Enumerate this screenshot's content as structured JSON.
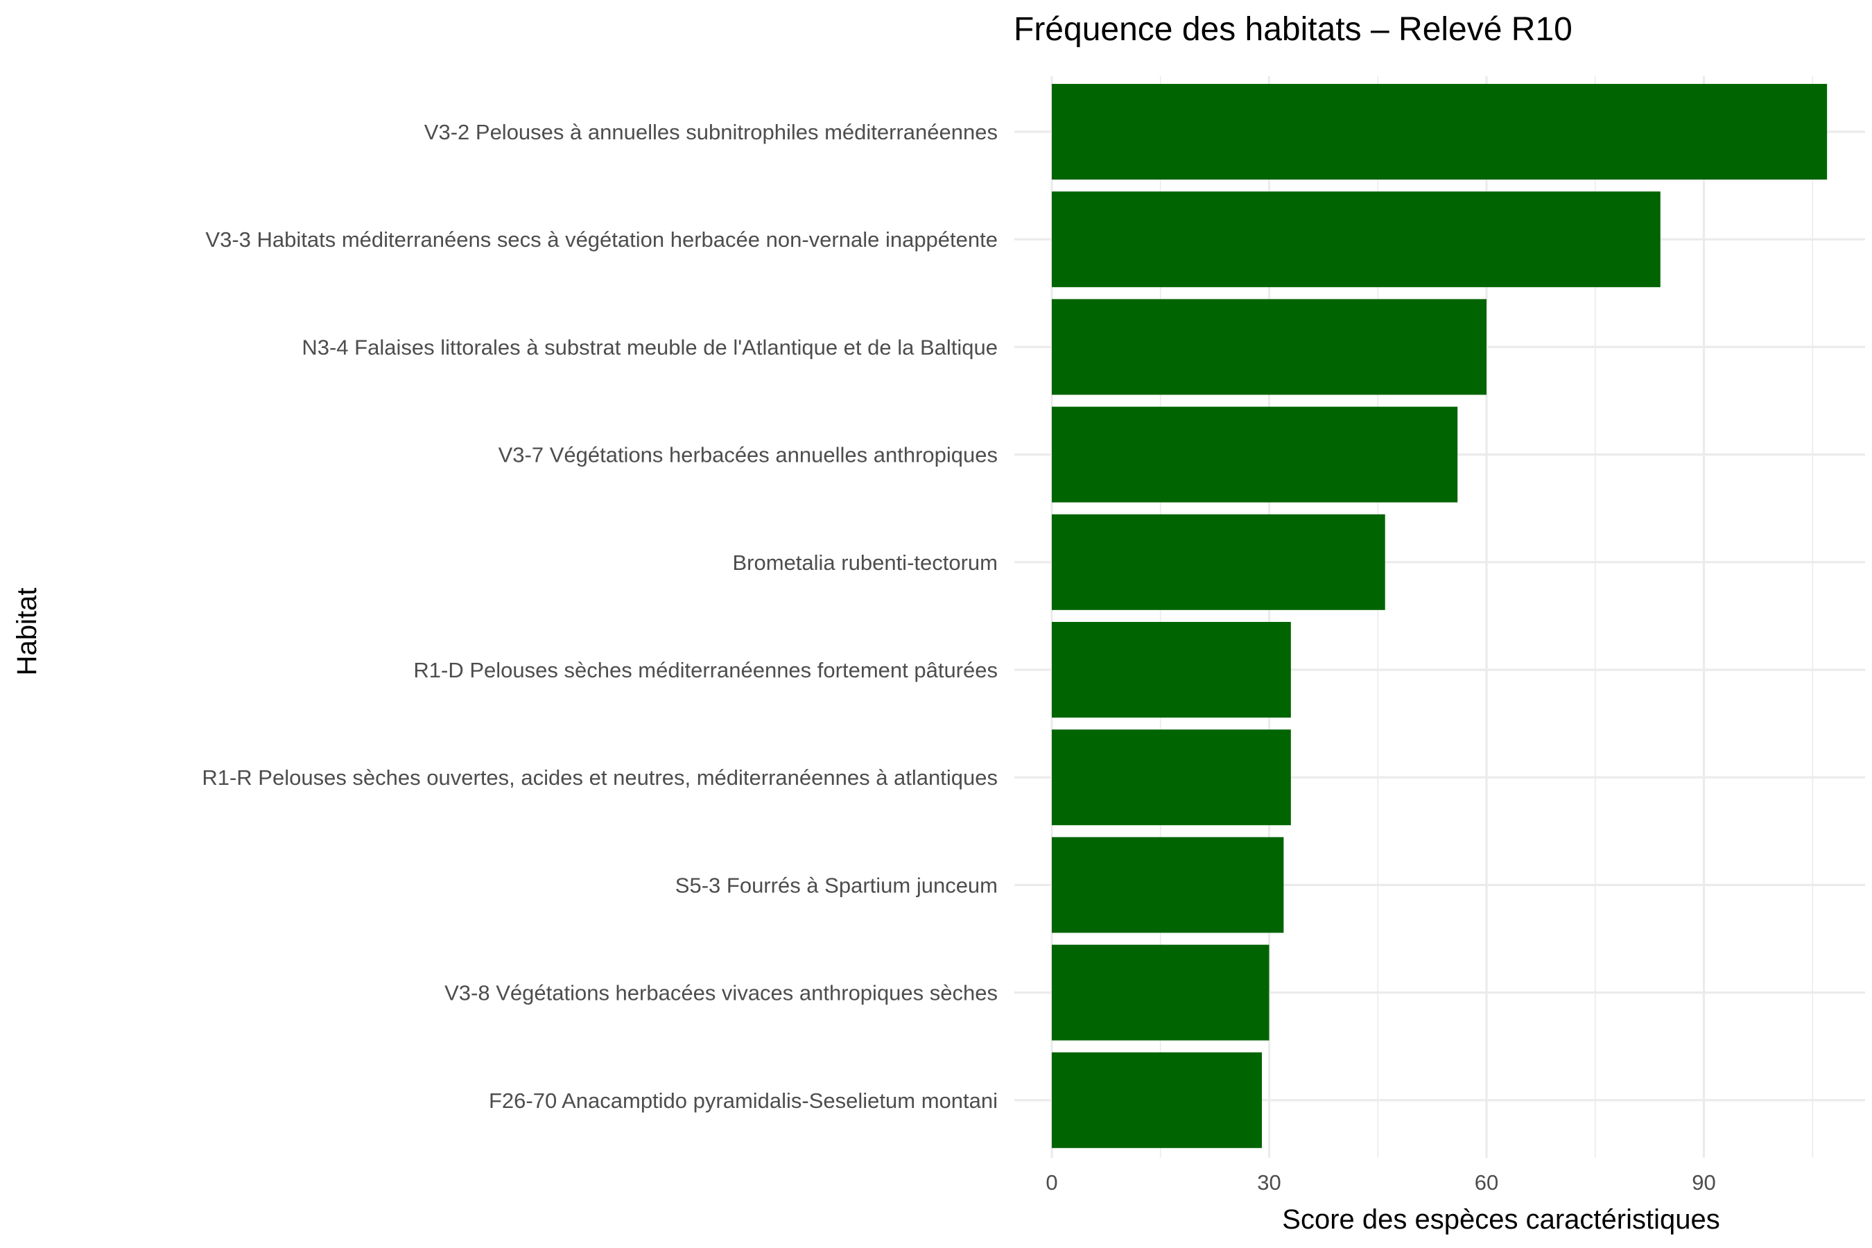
{
  "chart_data": {
    "type": "bar",
    "orientation": "horizontal",
    "title": "Fréquence des habitats – Relevé R10",
    "xlabel": "Score des espèces caractéristiques",
    "ylabel": "Habitat",
    "xlim": [
      0,
      107
    ],
    "x_ticks": [
      0,
      30,
      60,
      90
    ],
    "grid": true,
    "bar_color": "#006400",
    "categories": [
      "V3-2 Pelouses à annuelles subnitrophiles méditerranéennes",
      "V3-3 Habitats méditerranéens secs à végétation herbacée non-vernale inappétente",
      "N3-4 Falaises littorales à substrat meuble de l'Atlantique et de la Baltique",
      "V3-7 Végétations herbacées annuelles anthropiques",
      "Brometalia rubenti-tectorum",
      "R1-D Pelouses sèches méditerranéennes fortement pâturées",
      "R1-R Pelouses sèches ouvertes, acides et neutres, méditerranéennes à atlantiques",
      "S5-3 Fourrés à Spartium junceum",
      "V3-8 Végétations herbacées vivaces anthropiques sèches",
      "F26-70 Anacamptido pyramidalis-Seselietum montani"
    ],
    "values": [
      107,
      84,
      60,
      56,
      46,
      33,
      33,
      32,
      30,
      29
    ]
  }
}
